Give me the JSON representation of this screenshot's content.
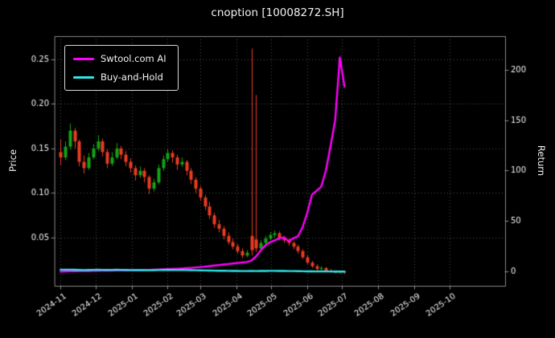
{
  "title": "cnoption [10008272.SH]",
  "axes": {
    "left_label": "Price",
    "right_label": "Return"
  },
  "legend": {
    "series1": "Swtool.com AI",
    "series2": "Buy-and-Hold"
  },
  "colors": {
    "background": "#000000",
    "text": "#f2f2f2",
    "grid": "#4d4d4d",
    "spine": "#8a8a8a",
    "ai_line": "#ff00ff",
    "bh_line": "#2ee6e6",
    "candle_up": "#14a314",
    "candle_down": "#ea3b23"
  },
  "chart_data": {
    "type": "candlestick+line",
    "x_domain": [
      "2024-10-27",
      "2025-11-18"
    ],
    "x_ticks": [
      "2024-11",
      "2024-12",
      "2025-01",
      "2025-02",
      "2025-03",
      "2025-04",
      "2025-05",
      "2025-06",
      "2025-07",
      "2025-08",
      "2025-09",
      "2025-10"
    ],
    "price_axis": {
      "label": "Price",
      "range": [
        -0.004,
        0.276
      ],
      "ticks": [
        0.05,
        0.1,
        0.15,
        0.2,
        0.25
      ]
    },
    "return_axis": {
      "label": "Return",
      "range": [
        -14,
        233
      ],
      "ticks": [
        0,
        50,
        100,
        150,
        200
      ]
    },
    "grid": "dotted",
    "legend_position": "upper-left",
    "dates": [
      "2024-11-01",
      "2024-11-05",
      "2024-11-09",
      "2024-11-13",
      "2024-11-17",
      "2024-11-21",
      "2024-11-25",
      "2024-11-29",
      "2024-12-03",
      "2024-12-07",
      "2024-12-11",
      "2024-12-15",
      "2024-12-19",
      "2024-12-23",
      "2024-12-27",
      "2024-12-31",
      "2025-01-04",
      "2025-01-08",
      "2025-01-12",
      "2025-01-16",
      "2025-01-20",
      "2025-01-24",
      "2025-01-28",
      "2025-02-01",
      "2025-02-05",
      "2025-02-09",
      "2025-02-13",
      "2025-02-17",
      "2025-02-21",
      "2025-02-25",
      "2025-03-01",
      "2025-03-05",
      "2025-03-09",
      "2025-03-13",
      "2025-03-17",
      "2025-03-21",
      "2025-03-25",
      "2025-03-29",
      "2025-04-02",
      "2025-04-06",
      "2025-04-10",
      "2025-04-14",
      "2025-04-18",
      "2025-04-22",
      "2025-04-26",
      "2025-04-30",
      "2025-05-04",
      "2025-05-08",
      "2025-05-12",
      "2025-05-16",
      "2025-05-20",
      "2025-05-24",
      "2025-05-28",
      "2025-06-01",
      "2025-06-05",
      "2025-06-09",
      "2025-06-13",
      "2025-06-17",
      "2025-06-21",
      "2025-06-25",
      "2025-06-29",
      "2025-07-03"
    ],
    "candles_ohlc": [
      [
        0.146,
        0.16,
        0.131,
        0.14
      ],
      [
        0.14,
        0.158,
        0.137,
        0.152
      ],
      [
        0.152,
        0.178,
        0.149,
        0.17
      ],
      [
        0.17,
        0.173,
        0.15,
        0.158
      ],
      [
        0.158,
        0.16,
        0.13,
        0.135
      ],
      [
        0.135,
        0.142,
        0.122,
        0.128
      ],
      [
        0.128,
        0.145,
        0.126,
        0.14
      ],
      [
        0.14,
        0.155,
        0.138,
        0.15
      ],
      [
        0.15,
        0.165,
        0.147,
        0.158
      ],
      [
        0.158,
        0.161,
        0.141,
        0.146
      ],
      [
        0.146,
        0.149,
        0.128,
        0.133
      ],
      [
        0.133,
        0.146,
        0.13,
        0.14
      ],
      [
        0.14,
        0.156,
        0.138,
        0.15
      ],
      [
        0.15,
        0.153,
        0.138,
        0.143
      ],
      [
        0.143,
        0.147,
        0.13,
        0.135
      ],
      [
        0.135,
        0.139,
        0.123,
        0.128
      ],
      [
        0.128,
        0.131,
        0.114,
        0.12
      ],
      [
        0.12,
        0.13,
        0.117,
        0.125
      ],
      [
        0.125,
        0.128,
        0.112,
        0.118
      ],
      [
        0.118,
        0.12,
        0.099,
        0.105
      ],
      [
        0.105,
        0.116,
        0.102,
        0.112
      ],
      [
        0.112,
        0.132,
        0.11,
        0.128
      ],
      [
        0.128,
        0.142,
        0.125,
        0.138
      ],
      [
        0.138,
        0.15,
        0.135,
        0.145
      ],
      [
        0.145,
        0.148,
        0.134,
        0.14
      ],
      [
        0.14,
        0.143,
        0.126,
        0.132
      ],
      [
        0.132,
        0.14,
        0.129,
        0.135
      ],
      [
        0.135,
        0.137,
        0.12,
        0.125
      ],
      [
        0.125,
        0.128,
        0.11,
        0.115
      ],
      [
        0.115,
        0.118,
        0.1,
        0.105
      ],
      [
        0.105,
        0.108,
        0.091,
        0.095
      ],
      [
        0.095,
        0.098,
        0.081,
        0.085
      ],
      [
        0.085,
        0.09,
        0.071,
        0.075
      ],
      [
        0.075,
        0.078,
        0.061,
        0.065
      ],
      [
        0.065,
        0.07,
        0.056,
        0.06
      ],
      [
        0.06,
        0.063,
        0.048,
        0.052
      ],
      [
        0.052,
        0.056,
        0.042,
        0.045
      ],
      [
        0.045,
        0.049,
        0.037,
        0.04
      ],
      [
        0.04,
        0.043,
        0.032,
        0.035
      ],
      [
        0.035,
        0.038,
        0.027,
        0.03
      ],
      [
        0.03,
        0.036,
        0.028,
        0.033
      ],
      [
        0.052,
        0.262,
        0.03,
        0.036
      ],
      [
        0.048,
        0.21,
        0.034,
        0.038
      ],
      [
        0.038,
        0.047,
        0.036,
        0.044
      ],
      [
        0.044,
        0.052,
        0.042,
        0.049
      ],
      [
        0.049,
        0.056,
        0.047,
        0.053
      ],
      [
        0.053,
        0.058,
        0.05,
        0.055
      ],
      [
        0.055,
        0.057,
        0.047,
        0.05
      ],
      [
        0.05,
        0.052,
        0.044,
        0.047
      ],
      [
        0.047,
        0.049,
        0.041,
        0.044
      ],
      [
        0.044,
        0.046,
        0.037,
        0.04
      ],
      [
        0.04,
        0.042,
        0.032,
        0.035
      ],
      [
        0.035,
        0.037,
        0.026,
        0.028
      ],
      [
        0.028,
        0.03,
        0.02,
        0.022
      ],
      [
        0.022,
        0.024,
        0.016,
        0.018
      ],
      [
        0.018,
        0.02,
        0.013,
        0.015
      ],
      [
        0.015,
        0.018,
        0.014,
        0.016
      ],
      [
        0.016,
        0.017,
        0.012,
        0.013
      ],
      [
        0.013,
        0.015,
        0.011,
        0.012
      ],
      [
        0.012,
        0.013,
        0.01,
        0.011
      ],
      [
        0.011,
        0.013,
        0.01,
        0.012
      ],
      [
        0.012,
        0.013,
        0.009,
        0.011
      ]
    ],
    "series": [
      {
        "name": "Swtool.com AI",
        "axis": "return",
        "values": [
          0,
          0.2,
          0.5,
          0.5,
          0.6,
          0.6,
          0.7,
          0.8,
          0.9,
          1.0,
          1.0,
          1.1,
          1.2,
          1.2,
          1.3,
          1.3,
          1.4,
          1.5,
          1.6,
          1.8,
          2.0,
          2.2,
          2.4,
          2.6,
          2.8,
          3.0,
          3.2,
          3.5,
          3.8,
          4.2,
          4.6,
          5.0,
          5.5,
          6.0,
          6.5,
          7.0,
          7.5,
          8.0,
          8.5,
          9.0,
          9.5,
          11,
          15,
          21,
          26,
          29,
          31,
          33,
          34,
          30,
          33,
          35,
          44,
          58,
          76,
          80,
          84,
          100,
          124,
          150,
          212,
          183
        ]
      },
      {
        "name": "Buy-and-Hold",
        "axis": "return",
        "values": [
          2.0,
          2.0,
          2.0,
          1.9,
          1.7,
          1.6,
          1.7,
          1.8,
          1.9,
          1.8,
          1.7,
          1.8,
          1.9,
          1.8,
          1.7,
          1.6,
          1.5,
          1.6,
          1.5,
          1.4,
          1.5,
          1.6,
          1.7,
          1.8,
          1.7,
          1.6,
          1.7,
          1.6,
          1.5,
          1.4,
          1.3,
          1.2,
          1.1,
          1.0,
          0.9,
          0.9,
          0.8,
          0.7,
          0.7,
          0.6,
          0.6,
          0.7,
          0.6,
          0.7,
          0.7,
          0.8,
          0.8,
          0.7,
          0.7,
          0.6,
          0.6,
          0.5,
          0.4,
          0.3,
          0.3,
          0.2,
          0.3,
          0.2,
          0.2,
          0.1,
          0.1,
          0.1
        ]
      }
    ]
  }
}
